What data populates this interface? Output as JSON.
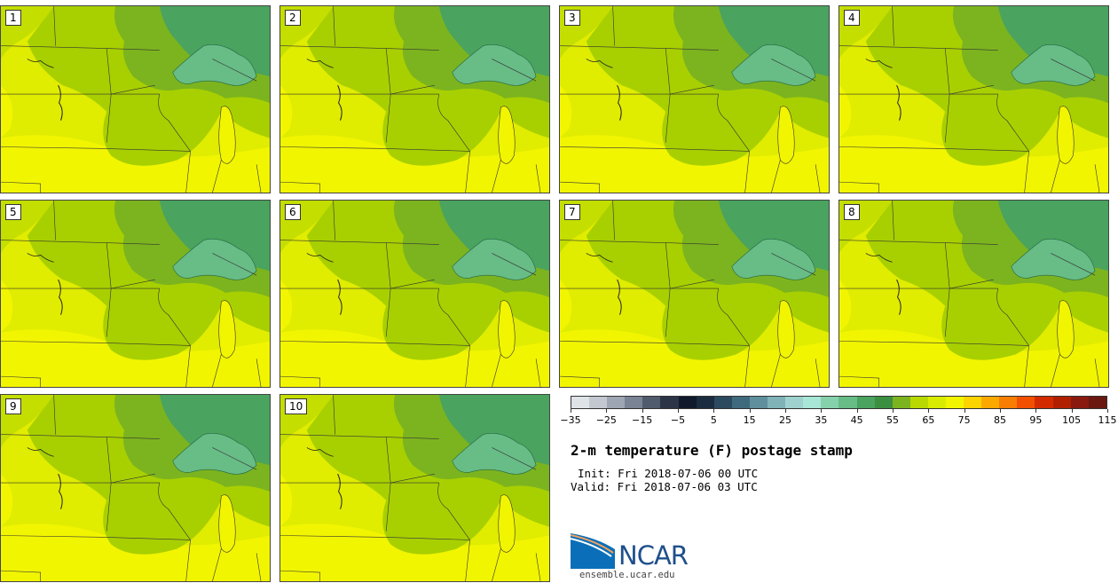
{
  "stamps": [
    {
      "label": "1"
    },
    {
      "label": "2"
    },
    {
      "label": "3"
    },
    {
      "label": "4"
    },
    {
      "label": "5"
    },
    {
      "label": "6"
    },
    {
      "label": "7"
    },
    {
      "label": "8"
    },
    {
      "label": "9"
    },
    {
      "label": "10"
    }
  ],
  "colorbar": {
    "colors": [
      "#dfe3e8",
      "#c3c8d0",
      "#9ea6b3",
      "#7a8394",
      "#515b6e",
      "#2c3448",
      "#101a2c",
      "#1b2c40",
      "#2c4a5f",
      "#3f6a7d",
      "#5f8f9c",
      "#7fb3b8",
      "#9fd2cf",
      "#a8e6d6",
      "#85d1ab",
      "#68bc86",
      "#4aa35e",
      "#3a9040",
      "#7cb41f",
      "#b8d800",
      "#d9ec00",
      "#f2f500",
      "#fdd400",
      "#fba900",
      "#f87d00",
      "#f25000",
      "#d42a00",
      "#b02000",
      "#8a1a10",
      "#6a1810"
    ],
    "tick_labels": [
      "−35",
      "−25",
      "−15",
      "−5",
      "5",
      "15",
      "25",
      "35",
      "45",
      "55",
      "65",
      "75",
      "85",
      "95",
      "105",
      "115"
    ]
  },
  "title": "2-m temperature (F) postage stamp",
  "init": "Init: Fri 2018-07-06 00 UTC",
  "valid": "Valid: Fri 2018-07-06 03 UTC",
  "logo": {
    "text": "NCAR",
    "site": "ensemble.ucar.edu"
  }
}
